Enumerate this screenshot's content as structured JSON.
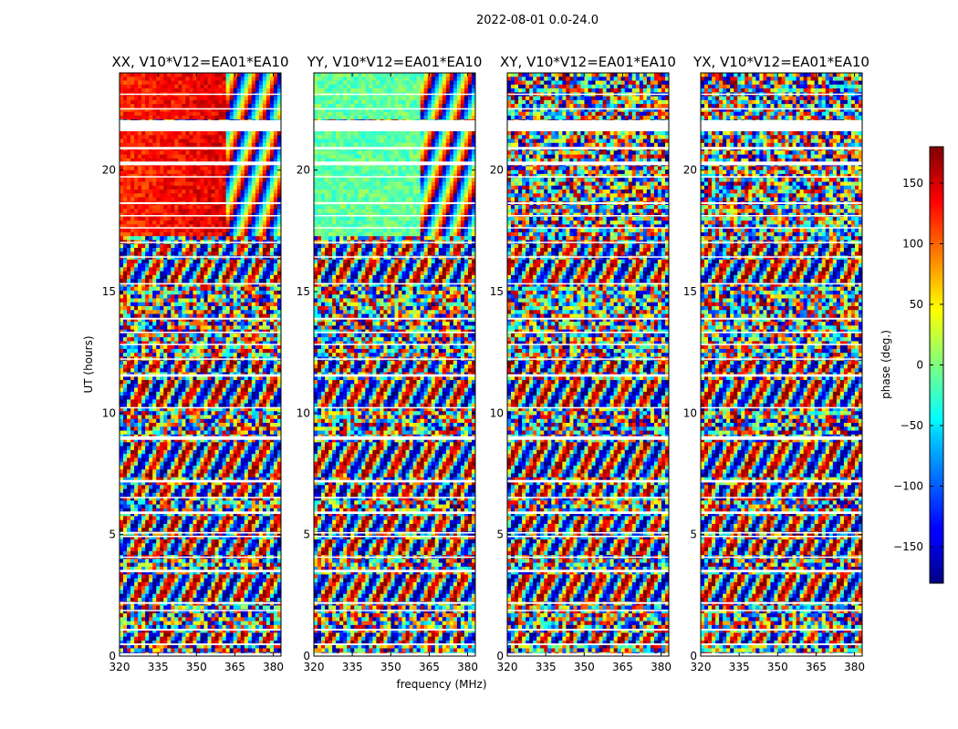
{
  "chart_data": {
    "type": "heatmap",
    "suptitle": "2022-08-01 0.0-24.0",
    "panels": [
      {
        "title": "XX, V10*V12=EA01*EA10",
        "coherent_level": 120
      },
      {
        "title": "YY, V10*V12=EA01*EA10",
        "coherent_level": -10
      },
      {
        "title": "XY, V10*V12=EA01*EA10",
        "coherent_level": null
      },
      {
        "title": "YX, V10*V12=EA01*EA10",
        "coherent_level": null
      }
    ],
    "xlabel": "frequency (MHz)",
    "ylabel": "UT (hours)",
    "xlim": [
      320,
      383
    ],
    "ylim": [
      0,
      24
    ],
    "xticks": [
      320,
      335,
      350,
      365,
      380
    ],
    "yticks": [
      0,
      5,
      10,
      15,
      20
    ],
    "colorbar": {
      "label": "phase (deg.)",
      "range": [
        -180,
        180
      ],
      "ticks": [
        150,
        100,
        50,
        0,
        -50,
        -100,
        -150
      ],
      "colormap": "jet"
    },
    "data_gaps_hours": [
      [
        0.0,
        0.12
      ],
      [
        0.45,
        0.52
      ],
      [
        1.05,
        1.12
      ],
      [
        1.85,
        1.9
      ],
      [
        2.15,
        2.22
      ],
      [
        3.45,
        3.55
      ],
      [
        4.05,
        4.1
      ],
      [
        4.9,
        4.95
      ],
      [
        5.05,
        5.1
      ],
      [
        5.85,
        5.95
      ],
      [
        6.5,
        6.55
      ],
      [
        7.15,
        7.25
      ],
      [
        8.9,
        9.05
      ],
      [
        10.2,
        10.25
      ],
      [
        11.5,
        11.6
      ],
      [
        12.2,
        12.25
      ],
      [
        12.8,
        12.85
      ],
      [
        13.3,
        13.35
      ],
      [
        13.85,
        13.92
      ],
      [
        15.3,
        15.35
      ],
      [
        16.4,
        16.45
      ],
      [
        17.0,
        17.05
      ],
      [
        17.6,
        17.65
      ],
      [
        18.1,
        18.15
      ],
      [
        18.6,
        18.68
      ],
      [
        19.7,
        19.75
      ],
      [
        20.2,
        20.35
      ],
      [
        20.85,
        20.95
      ],
      [
        21.6,
        22.05
      ],
      [
        22.5,
        22.55
      ],
      [
        23.1,
        23.15
      ]
    ],
    "ripple_bands_hours": [
      [
        0.55,
        1.0
      ],
      [
        2.3,
        3.3
      ],
      [
        4.1,
        4.85
      ],
      [
        5.1,
        5.8
      ],
      [
        6.6,
        7.1
      ],
      [
        7.3,
        8.8
      ],
      [
        10.3,
        11.4
      ],
      [
        11.7,
        12.1
      ],
      [
        15.4,
        16.35
      ],
      [
        16.5,
        16.95
      ]
    ]
  }
}
